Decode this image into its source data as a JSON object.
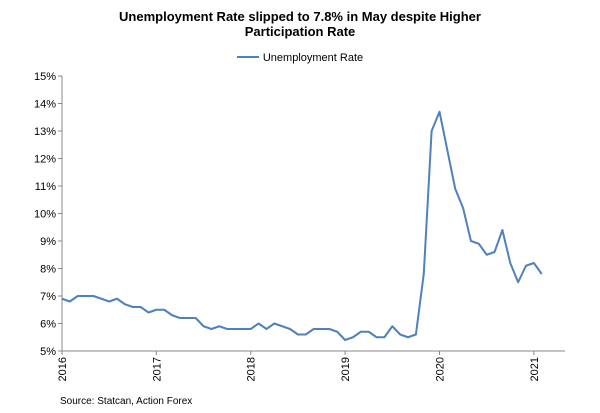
{
  "title_lines": [
    "Unemployment  Rate slipped to 7.8% in May despite Higher",
    "Participation Rate"
  ],
  "source": "Source: Statcan, Action Forex",
  "chart_data": {
    "type": "line",
    "title": "Unemployment  Rate slipped to 7.8% in May despite Higher Participation Rate",
    "xlabel": "",
    "ylabel": "",
    "ylim": [
      5,
      15
    ],
    "xlim": [
      2016,
      2021.33
    ],
    "y_ticks": [
      5,
      6,
      7,
      8,
      9,
      10,
      11,
      12,
      13,
      14,
      15
    ],
    "y_tick_labels": [
      "5%",
      "6%",
      "7%",
      "8%",
      "9%",
      "10%",
      "11%",
      "12%",
      "13%",
      "14%",
      "15%"
    ],
    "x_ticks": [
      2016,
      2017,
      2018,
      2019,
      2020,
      2021
    ],
    "x_tick_labels": [
      "2016",
      "2017",
      "2018",
      "2019",
      "2020",
      "2021"
    ],
    "grid": false,
    "legend": "top-center",
    "series": [
      {
        "name": "Unemployment Rate",
        "color": "#4f81bd",
        "start": "2016-01",
        "values": [
          6.9,
          6.8,
          7.0,
          7.0,
          7.0,
          6.9,
          6.8,
          6.9,
          6.7,
          6.6,
          6.6,
          6.4,
          6.5,
          6.5,
          6.3,
          6.2,
          6.2,
          6.2,
          5.9,
          5.8,
          5.9,
          5.8,
          5.8,
          5.8,
          5.8,
          6.0,
          5.8,
          6.0,
          5.9,
          5.8,
          5.6,
          5.6,
          5.8,
          5.8,
          5.8,
          5.7,
          5.4,
          5.5,
          5.7,
          5.7,
          5.5,
          5.5,
          5.9,
          5.6,
          5.5,
          5.6,
          7.8,
          13.0,
          13.7,
          12.3,
          10.9,
          10.2,
          9.0,
          8.9,
          8.5,
          8.6,
          9.4,
          8.2,
          7.5,
          8.1,
          8.2,
          7.8
        ]
      }
    ]
  }
}
